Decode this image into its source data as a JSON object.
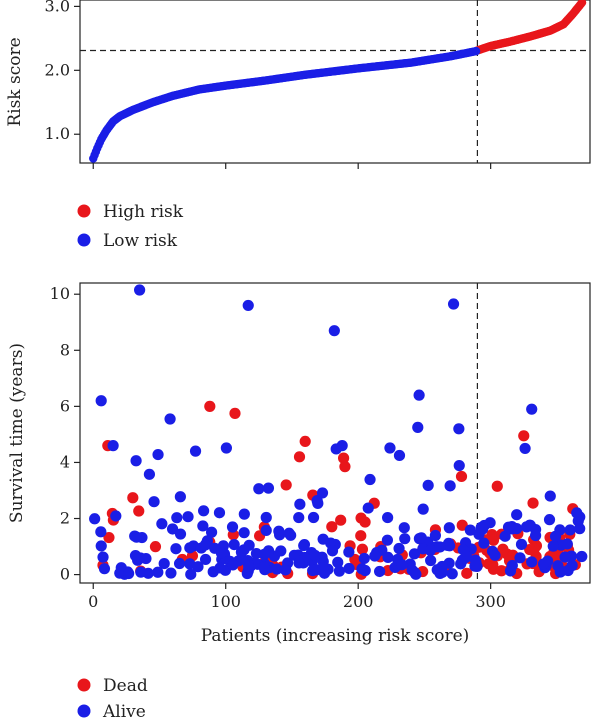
{
  "chart_data": [
    {
      "type": "scatter",
      "panel": "risk-score",
      "xlabel": "",
      "ylabel": "Risk score",
      "xlim": [
        -10,
        375
      ],
      "ylim": [
        0.55,
        3.1
      ],
      "xticks": [
        0,
        100,
        200,
        300
      ],
      "xtick_labels": [
        "",
        "",
        "",
        ""
      ],
      "yticks": [
        1.0,
        2.0,
        3.0
      ],
      "ytick_labels": [
        "1.0",
        "2.0",
        "3.0"
      ],
      "cutoff": {
        "x": 290,
        "y": 2.31
      },
      "grid": false,
      "legend_position": "below",
      "series": [
        {
          "name": "High risk",
          "color": "#e8161b",
          "x_range": [
            290,
            369
          ],
          "n_points": 80
        },
        {
          "name": "Low risk",
          "color": "#1a1ee6",
          "x_range": [
            0,
            289
          ],
          "n_points": 290
        }
      ],
      "curve_knots": {
        "x": [
          0,
          3,
          6,
          10,
          15,
          20,
          30,
          45,
          60,
          80,
          100,
          130,
          160,
          200,
          240,
          270,
          289,
          290,
          300,
          315,
          330,
          345,
          355,
          362,
          369
        ],
        "y": [
          0.62,
          0.78,
          0.92,
          1.06,
          1.2,
          1.28,
          1.38,
          1.5,
          1.6,
          1.7,
          1.76,
          1.84,
          1.93,
          2.03,
          2.12,
          2.22,
          2.3,
          2.31,
          2.38,
          2.45,
          2.53,
          2.62,
          2.72,
          2.88,
          3.06
        ]
      }
    },
    {
      "type": "scatter",
      "panel": "survival",
      "xlabel": "Patients (increasing risk score)",
      "ylabel": "Survival time (years)",
      "xlim": [
        -10,
        375
      ],
      "ylim": [
        -0.3,
        10.4
      ],
      "xticks": [
        0,
        100,
        200,
        300
      ],
      "xtick_labels": [
        "0",
        "100",
        "200",
        "300"
      ],
      "yticks": [
        0,
        2,
        4,
        6,
        8,
        10
      ],
      "ytick_labels": [
        "0",
        "2",
        "4",
        "6",
        "8",
        "10"
      ],
      "cutoff": {
        "x": 290
      },
      "grid": false,
      "legend_position": "below",
      "series": [
        {
          "name": "Dead",
          "color": "#e8161b",
          "n_points": 113
        },
        {
          "name": "Alive",
          "color": "#1a1ee6",
          "n_points": 257
        }
      ],
      "highlight_points": [
        {
          "x": 35,
          "y": 10.15,
          "status": "Alive"
        },
        {
          "x": 117,
          "y": 9.6,
          "status": "Alive"
        },
        {
          "x": 182,
          "y": 8.7,
          "status": "Alive"
        },
        {
          "x": 272,
          "y": 9.65,
          "status": "Alive"
        },
        {
          "x": 6,
          "y": 6.2,
          "status": "Alive"
        },
        {
          "x": 58,
          "y": 5.55,
          "status": "Alive"
        },
        {
          "x": 88,
          "y": 6.0,
          "status": "Dead"
        },
        {
          "x": 107,
          "y": 5.75,
          "status": "Dead"
        },
        {
          "x": 246,
          "y": 6.4,
          "status": "Alive"
        },
        {
          "x": 331,
          "y": 5.9,
          "status": "Alive"
        },
        {
          "x": 160,
          "y": 4.75,
          "status": "Dead"
        },
        {
          "x": 190,
          "y": 3.85,
          "status": "Dead"
        },
        {
          "x": 325,
          "y": 4.95,
          "status": "Dead"
        },
        {
          "x": 276,
          "y": 5.2,
          "status": "Alive"
        },
        {
          "x": 245,
          "y": 5.25,
          "status": "Alive"
        },
        {
          "x": 11,
          "y": 4.6,
          "status": "Dead"
        },
        {
          "x": 15,
          "y": 4.6,
          "status": "Alive"
        },
        {
          "x": 278,
          "y": 3.5,
          "status": "Dead"
        },
        {
          "x": 305,
          "y": 3.15,
          "status": "Dead"
        },
        {
          "x": 326,
          "y": 4.5,
          "status": "Alive"
        },
        {
          "x": 345,
          "y": 2.8,
          "status": "Alive"
        },
        {
          "x": 332,
          "y": 2.55,
          "status": "Dead"
        },
        {
          "x": 362,
          "y": 2.35,
          "status": "Dead"
        },
        {
          "x": 365,
          "y": 2.2,
          "status": "Alive"
        }
      ]
    }
  ],
  "legends": {
    "risk": [
      {
        "label": "High risk",
        "color": "#e8161b"
      },
      {
        "label": "Low risk",
        "color": "#1a1ee6"
      }
    ],
    "status": [
      {
        "label": "Dead",
        "color": "#e8161b"
      },
      {
        "label": "Alive",
        "color": "#1a1ee6"
      }
    ]
  }
}
